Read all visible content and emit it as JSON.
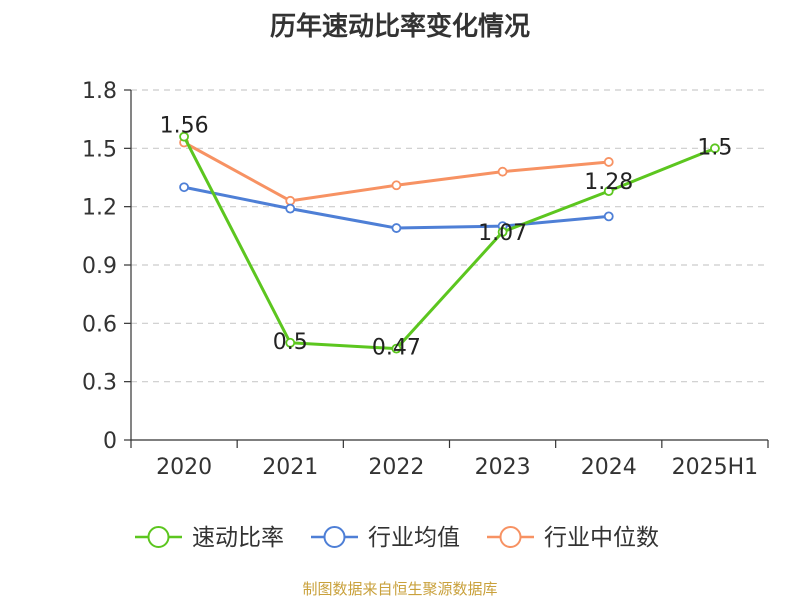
{
  "page": {
    "title": "历年速动比率变化情况",
    "source_note": "制图数据来自恒生聚源数据库"
  },
  "chart_data": {
    "type": "line",
    "title": "历年速动比率变化情况",
    "xlabel": "",
    "ylabel": "",
    "categories": [
      "2020",
      "2021",
      "2022",
      "2023",
      "2024",
      "2025H1"
    ],
    "ylim": [
      0,
      1.8
    ],
    "yticks": [
      "0",
      "0.3",
      "0.6",
      "0.9",
      "1.2",
      "1.5",
      "1.8"
    ],
    "grid": true,
    "legend_position": "bottom",
    "series": [
      {
        "name": "速动比率",
        "color": "#5cc61f",
        "values": [
          1.56,
          0.5,
          0.47,
          1.07,
          1.28,
          1.5
        ],
        "labels": [
          "1.56",
          "0.5",
          "0.47",
          "1.07",
          "1.28",
          "1.5"
        ]
      },
      {
        "name": "行业均值",
        "color": "#4e7fd6",
        "values": [
          1.3,
          1.19,
          1.09,
          1.1,
          1.15,
          null
        ]
      },
      {
        "name": "行业中位数",
        "color": "#f79263",
        "values": [
          1.53,
          1.23,
          1.31,
          1.38,
          1.43,
          null
        ]
      }
    ]
  }
}
